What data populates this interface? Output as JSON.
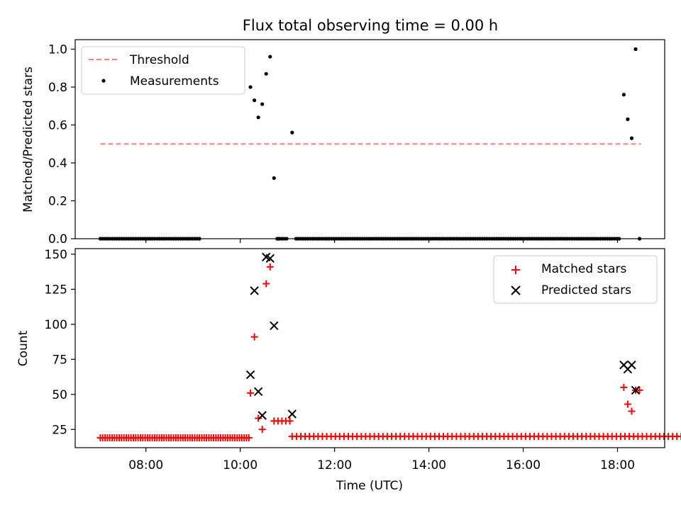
{
  "chart_data": [
    {
      "type": "scatter",
      "title": "Flux total observing time = 0.00 h",
      "xlabel": "",
      "ylabel": "Matched/Predicted stars",
      "ylim": [
        0,
        1.05
      ],
      "yticks": [
        "0.0",
        "0.2",
        "0.4",
        "0.6",
        "0.8",
        "1.0"
      ],
      "legend": {
        "placement": "top-left",
        "entries": [
          "Threshold",
          "Measurements"
        ]
      },
      "series": [
        {
          "name": "Threshold",
          "kind": "dashed-line",
          "color": "#ff7f7f",
          "x": [
            "07:02",
            "18:30"
          ],
          "values": [
            0.5,
            0.5
          ]
        },
        {
          "name": "Measurements",
          "kind": "dot",
          "color": "#000000",
          "groups": [
            {
              "x_start": "07:02",
              "x_step_min": 3,
              "count": 43,
              "value": 0
            },
            {
              "x": [
                "10:13",
                "10:18",
                "10:23",
                "10:28",
                "10:33",
                "10:38",
                "10:43",
                "10:49",
                "11:06"
              ],
              "values": [
                0.8,
                0.73,
                0.64,
                0.71,
                0.87,
                0.96,
                0.32,
                0.0,
                0.56
              ]
            },
            {
              "x_start": "10:47",
              "x_step_min": 3,
              "count": 5,
              "value": 0
            },
            {
              "x_start": "11:11",
              "x_step_min": 3,
              "count": 138,
              "value": 0
            },
            {
              "x": [
                "18:08",
                "18:13",
                "18:18",
                "18:23",
                "18:28"
              ],
              "values": [
                0.76,
                0.63,
                0.53,
                1.0,
                0.0
              ]
            }
          ]
        }
      ]
    },
    {
      "type": "scatter",
      "title": "",
      "xlabel": "Time (UTC)",
      "ylabel": "Count",
      "xlim": [
        "06:30",
        "19:00"
      ],
      "xticks": [
        "08:00",
        "10:00",
        "12:00",
        "14:00",
        "16:00",
        "18:00"
      ],
      "ylim": [
        12,
        154
      ],
      "yticks": [
        "25",
        "50",
        "75",
        "100",
        "125",
        "150"
      ],
      "legend": {
        "placement": "top-right",
        "entries": [
          "Matched stars",
          "Predicted stars"
        ]
      },
      "series": [
        {
          "name": "Matched stars",
          "kind": "plus",
          "color": "#ff0000",
          "groups": [
            {
              "x_start": "07:02",
              "x_step_min": 3,
              "count": 64,
              "value": 19
            },
            {
              "x": [
                "10:13",
                "10:18",
                "10:23",
                "10:28",
                "10:33",
                "10:38"
              ],
              "values": [
                51,
                91,
                33,
                25,
                129,
                141
              ]
            },
            {
              "x": [
                "10:43",
                "10:48",
                "10:53",
                "10:58",
                "11:03"
              ],
              "values": [
                31,
                31,
                31,
                31,
                31
              ]
            },
            {
              "x_start": "11:06",
              "x_step_min": 5.5,
              "count": 125,
              "value": 20
            },
            {
              "x": [
                "18:08",
                "18:13",
                "18:18",
                "18:23",
                "18:28"
              ],
              "values": [
                55,
                43,
                38,
                53,
                53
              ]
            }
          ]
        },
        {
          "name": "Predicted stars",
          "kind": "cross",
          "color": "#000000",
          "groups": [
            {
              "x": [
                "10:13",
                "10:18",
                "10:23",
                "10:28",
                "10:33",
                "10:38",
                "10:43",
                "11:06"
              ],
              "values": [
                64,
                124,
                52,
                35,
                148,
                147,
                99,
                36
              ]
            },
            {
              "x": [
                "18:08",
                "18:13",
                "18:18",
                "18:23"
              ],
              "values": [
                71,
                68,
                71,
                53
              ]
            }
          ]
        }
      ]
    }
  ]
}
